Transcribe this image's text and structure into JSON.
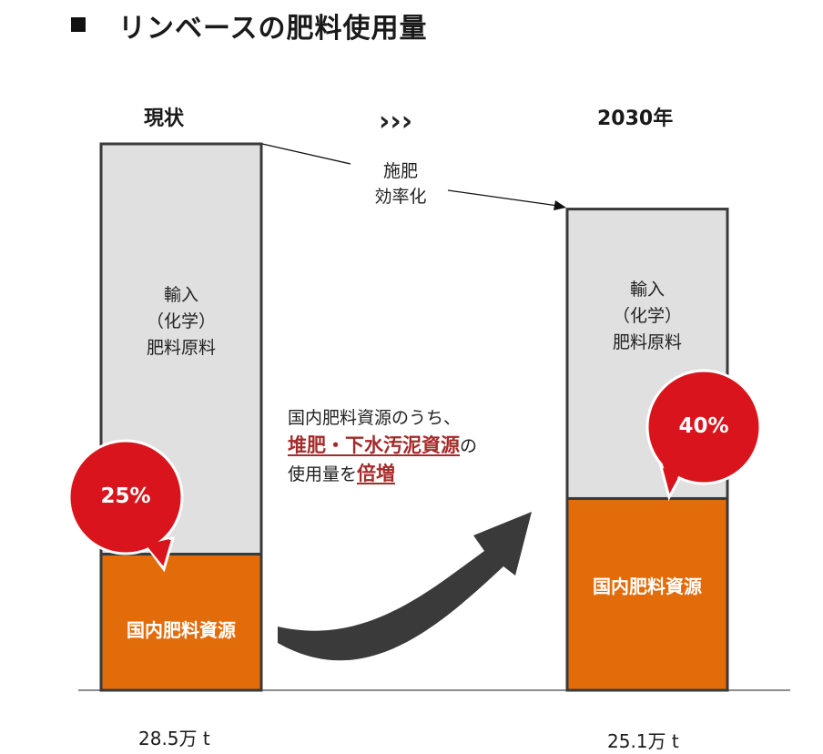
{
  "title": "リンベースの肥料使用量",
  "chart_data": {
    "type": "bar",
    "stacked": true,
    "categories": [
      "現状",
      "2030年"
    ],
    "series": [
      {
        "name": "国内肥料資源",
        "values": [
          7.1,
          10.0
        ],
        "color": "#e36c0a"
      },
      {
        "name": "輸入（化学）肥料原料",
        "values": [
          21.4,
          15.1
        ],
        "color": "#e0e0e0"
      }
    ],
    "totals": [
      "28.5万 t",
      "25.1万 t"
    ],
    "shares": [
      "25%",
      "40%"
    ],
    "ylim": [
      0,
      28.5
    ]
  },
  "labels": {
    "left_head": "現状",
    "right_head": "2030年",
    "chevrons": "›››",
    "import_lines": [
      "輸入",
      "（化学）",
      "肥料原料"
    ],
    "domestic": "国内肥料資源",
    "efficiency_lines": [
      "施肥",
      "効率化"
    ],
    "note_line1": "国内肥料資源のうち、",
    "note_hl1": "堆肥・下水汚泥資源",
    "note_suffix1": "の",
    "note_prefix3": "使用量を",
    "note_hl2": "倍増"
  },
  "colors": {
    "orange": "#e36c0a",
    "gray": "#e0e0e0",
    "red": "#d9141c",
    "arrow": "#3a3a3a",
    "highlight": "#a52a2a"
  }
}
